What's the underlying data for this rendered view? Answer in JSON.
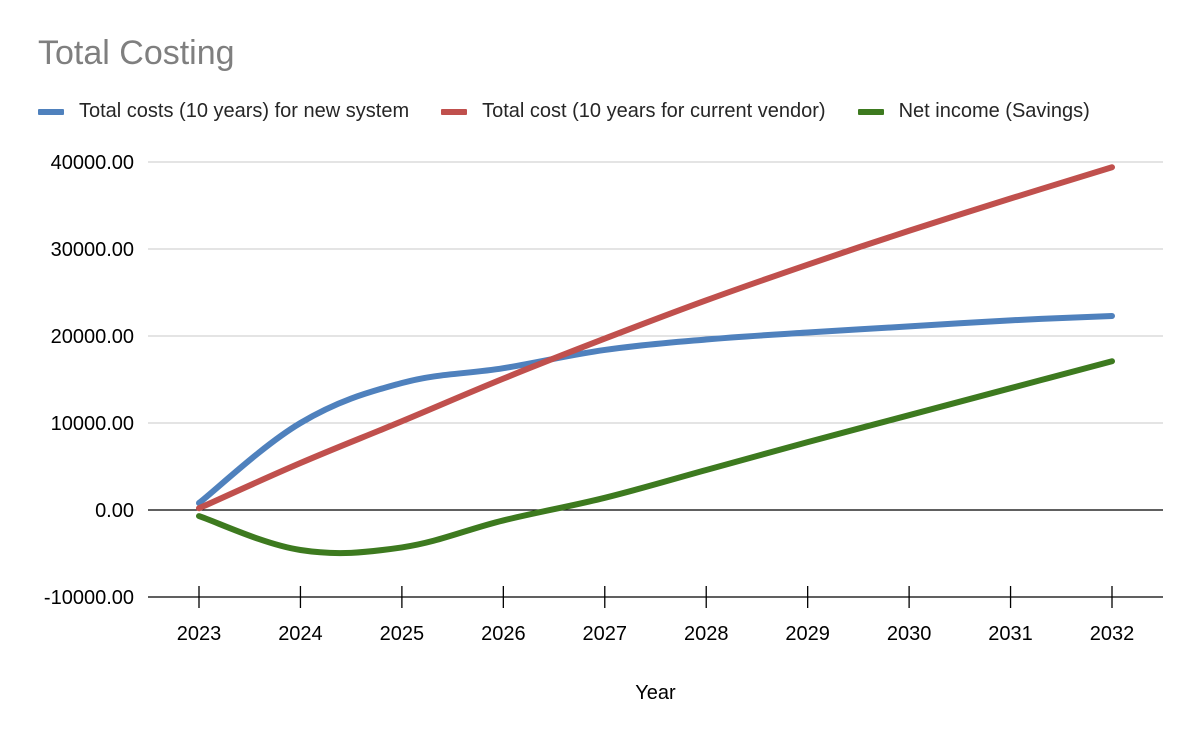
{
  "chart_data": {
    "type": "line",
    "title": "Total Costing",
    "xlabel": "Year",
    "ylabel": "",
    "categories": [
      "2023",
      "2024",
      "2025",
      "2026",
      "2027",
      "2028",
      "2029",
      "2030",
      "2031",
      "2032"
    ],
    "ylim": [
      -10000,
      40000
    ],
    "yticks": [
      -10000,
      0,
      10000,
      20000,
      30000,
      40000
    ],
    "ytick_labels": [
      "-10000.00",
      "0.00",
      "10000.00",
      "20000.00",
      "30000.00",
      "40000.00"
    ],
    "grid": true,
    "legend_position": "top",
    "series": [
      {
        "name": "Total costs (10 years) for new system",
        "color": "#4f81bd",
        "values": [
          800,
          10000,
          14600,
          16300,
          18400,
          19600,
          20400,
          21100,
          21800,
          22300
        ]
      },
      {
        "name": "Total cost (10 years for current vendor)",
        "color": "#c0504d",
        "values": [
          200,
          5400,
          10200,
          15100,
          19700,
          24100,
          28200,
          32100,
          35800,
          39400
        ]
      },
      {
        "name": "Net income (Savings)",
        "color": "#3d7a1f",
        "values": [
          -700,
          -4600,
          -4300,
          -1200,
          1400,
          4600,
          7800,
          10900,
          14000,
          17100
        ]
      }
    ]
  }
}
